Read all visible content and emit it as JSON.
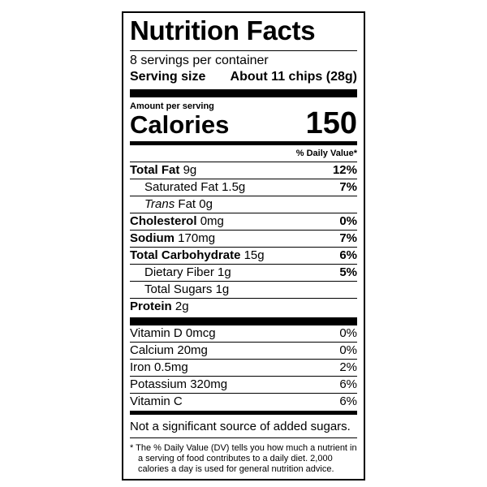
{
  "title": "Nutrition Facts",
  "servings": "8 servings per container",
  "serving_size": {
    "label": "Serving size",
    "value": "About 11 chips (28g)"
  },
  "amount_per_serving": "Amount per serving",
  "calories": {
    "label": "Calories",
    "value": "150"
  },
  "daily_value_header": "% Daily Value*",
  "nutrients": [
    {
      "name": "Total Fat",
      "amount": "9g",
      "dv": "12%"
    },
    {
      "name": "Saturated Fat",
      "amount": "1.5g",
      "dv": "7%"
    },
    {
      "prefix": "Trans",
      "name": "Fat",
      "amount": "0g"
    },
    {
      "name": "Cholesterol",
      "amount": "0mg",
      "dv": "0%"
    },
    {
      "name": "Sodium",
      "amount": "170mg",
      "dv": "7%"
    },
    {
      "name": "Total Carbohydrate",
      "amount": "15g",
      "dv": "6%"
    },
    {
      "name": "Dietary Fiber",
      "amount": "1g",
      "dv": "5%"
    },
    {
      "name": "Total Sugars",
      "amount": "1g"
    },
    {
      "name": "Protein",
      "amount": "2g"
    }
  ],
  "vitamins": [
    {
      "name": "Vitamin D",
      "amount": "0mcg",
      "dv": "0%"
    },
    {
      "name": "Calcium",
      "amount": "20mg",
      "dv": "0%"
    },
    {
      "name": "Iron",
      "amount": "0.5mg",
      "dv": "2%"
    },
    {
      "name": "Potassium",
      "amount": "320mg",
      "dv": "6%"
    },
    {
      "name": "Vitamin C",
      "dv": "6%"
    }
  ],
  "added_sugars_note": "Not a significant source of added sugars.",
  "footnote": "* The % Daily Value (DV) tells you how much a nutrient in a serving of food contributes to a daily diet. 2,000 calories a day is used for general nutrition advice."
}
